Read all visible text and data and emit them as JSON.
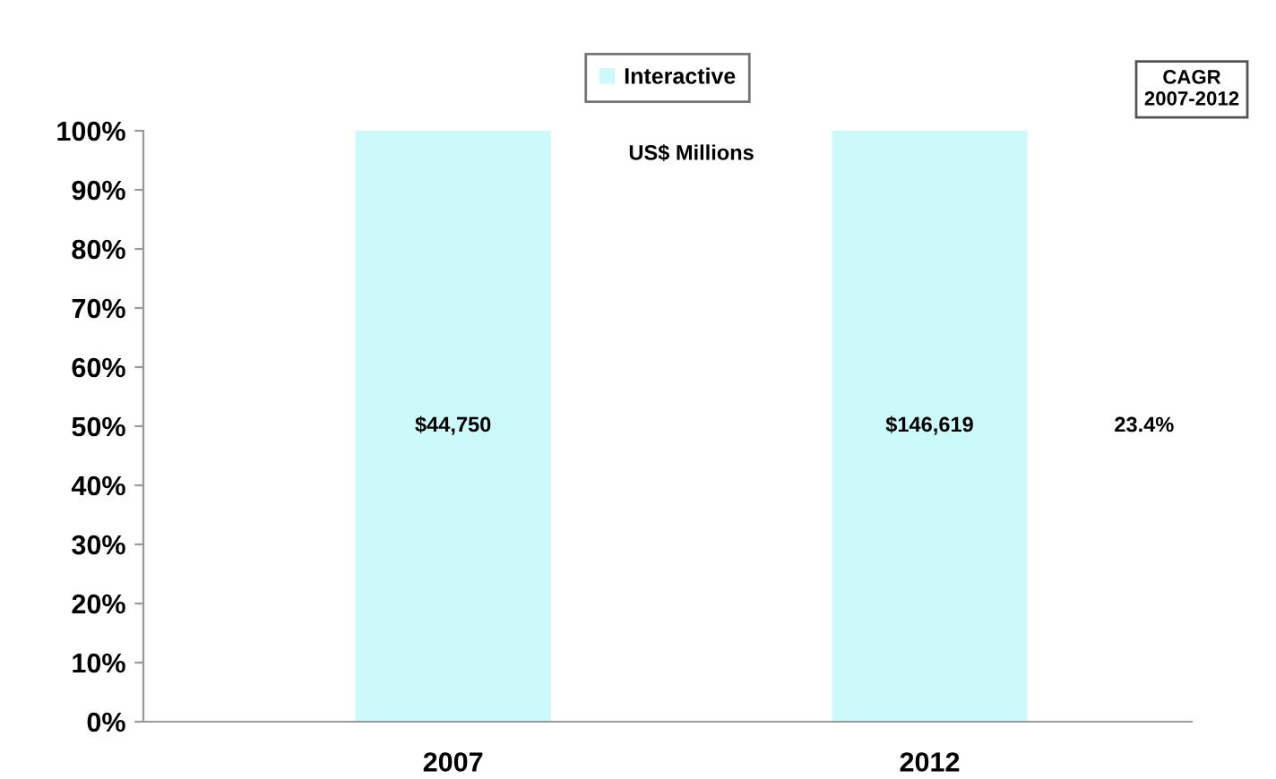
{
  "chart_data": {
    "type": "bar",
    "categories": [
      "2007",
      "2012"
    ],
    "series": [
      {
        "name": "Interactive",
        "color": "#ccf9f9",
        "values": [
          100,
          100
        ]
      }
    ],
    "ylim": [
      0,
      100
    ],
    "yticks": [
      {
        "value": 0,
        "label": "0%"
      },
      {
        "value": 10,
        "label": "10%"
      },
      {
        "value": 20,
        "label": "20%"
      },
      {
        "value": 30,
        "label": "30%"
      },
      {
        "value": 40,
        "label": "40%"
      },
      {
        "value": 50,
        "label": "50%"
      },
      {
        "value": 60,
        "label": "60%"
      },
      {
        "value": 70,
        "label": "70%"
      },
      {
        "value": 80,
        "label": "80%"
      },
      {
        "value": 90,
        "label": "90%"
      },
      {
        "value": 100,
        "label": "100%"
      }
    ],
    "annotations": [
      "US$ Millions",
      "CAGR\n2007-2012",
      "23.4%",
      "$44,750",
      "$146,619"
    ],
    "legend": "top",
    "grid": false
  }
}
